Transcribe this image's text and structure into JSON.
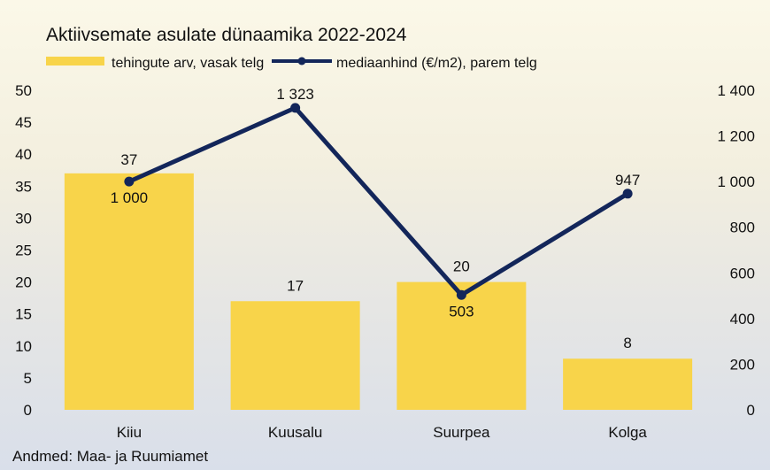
{
  "chart_data": {
    "type": "bar",
    "title": "Aktiivsemate asulate dünaamika 2022-2024",
    "source": "Andmed: Maa- ja Ruumiamet",
    "categories": [
      "Kiiu",
      "Kuusalu",
      "Suurpea",
      "Kolga"
    ],
    "series": [
      {
        "name": "tehingute arv, vasak telg",
        "type": "bar",
        "axis": "left",
        "color": "#f8d44a",
        "values": [
          37,
          17,
          20,
          8
        ],
        "labels": [
          "37",
          "17",
          "20",
          "8"
        ]
      },
      {
        "name": "mediaanhind (€/m2), parem telg",
        "type": "line",
        "axis": "right",
        "color": "#13265a",
        "values": [
          1000,
          1323,
          503,
          947
        ],
        "labels": [
          "1 000",
          "1 323",
          "503",
          "947"
        ]
      }
    ],
    "y_left": {
      "min": 0,
      "max": 50,
      "ticks": [
        "0",
        "5",
        "10",
        "15",
        "20",
        "25",
        "30",
        "35",
        "40",
        "45",
        "50"
      ]
    },
    "y_right": {
      "min": 0,
      "max": 1400,
      "ticks": [
        "0",
        "200",
        "400",
        "600",
        "800",
        "1 000",
        "1 200",
        "1 400"
      ]
    },
    "grid": false,
    "legend_position": "top"
  }
}
